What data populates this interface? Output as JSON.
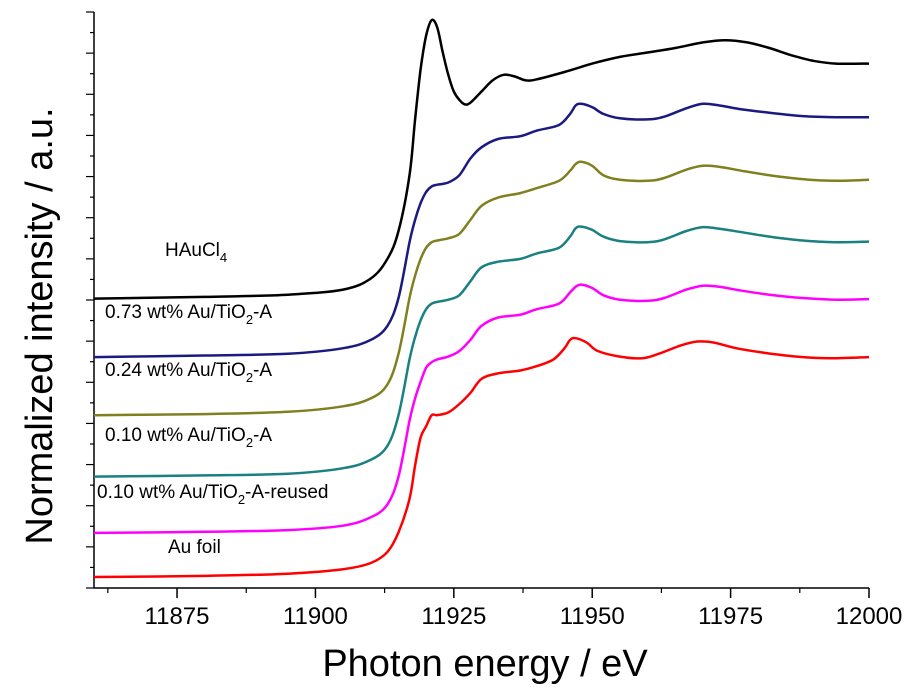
{
  "chart_data": {
    "type": "line",
    "title": "",
    "xlabel": "Photon energy / eV",
    "ylabel": "Normalized intensity / a.u.",
    "xlim": [
      11860,
      12000
    ],
    "ylim": [
      0,
      1
    ],
    "x_ticks": [
      11875,
      11900,
      11925,
      11950,
      11975,
      12000
    ],
    "x_tick_labels": [
      "11875",
      "11900",
      "11925",
      "11950",
      "11975",
      "12000"
    ],
    "y_tick_labels": "none",
    "grid": false,
    "legend": "inline labels",
    "series": [
      {
        "name": "HAuCl4",
        "label_main": "HAuCl",
        "label_sub": "4",
        "label_tail": "",
        "color": "#000000",
        "points": [
          [
            11860,
            0.499
          ],
          [
            11880,
            0.502
          ],
          [
            11895,
            0.506
          ],
          [
            11905,
            0.515
          ],
          [
            11910,
            0.535
          ],
          [
            11913,
            0.57
          ],
          [
            11915,
            0.62
          ],
          [
            11917,
            0.72
          ],
          [
            11918,
            0.82
          ],
          [
            11919,
            0.91
          ],
          [
            11920,
            0.97
          ],
          [
            11921,
            0.998
          ],
          [
            11922,
            0.985
          ],
          [
            11923,
            0.94
          ],
          [
            11924,
            0.9
          ],
          [
            11925,
            0.87
          ],
          [
            11926,
            0.855
          ],
          [
            11927,
            0.847
          ],
          [
            11928,
            0.85
          ],
          [
            11930,
            0.87
          ],
          [
            11932,
            0.89
          ],
          [
            11934,
            0.9
          ],
          [
            11936,
            0.897
          ],
          [
            11938,
            0.89
          ],
          [
            11940,
            0.892
          ],
          [
            11945,
            0.905
          ],
          [
            11950,
            0.92
          ],
          [
            11955,
            0.932
          ],
          [
            11960,
            0.94
          ],
          [
            11965,
            0.948
          ],
          [
            11970,
            0.958
          ],
          [
            11974,
            0.962
          ],
          [
            11978,
            0.958
          ],
          [
            11982,
            0.948
          ],
          [
            11986,
            0.935
          ],
          [
            11990,
            0.925
          ],
          [
            11994,
            0.92
          ],
          [
            12000,
            0.92
          ]
        ]
      },
      {
        "name": "0.73 wt% Au/TiO2-A",
        "label_main": "0.73 wt% Au/TiO",
        "label_sub": "2",
        "label_tail": "-A",
        "color": "#1a1a80",
        "points": [
          [
            11860,
            0.394
          ],
          [
            11880,
            0.397
          ],
          [
            11895,
            0.4
          ],
          [
            11905,
            0.41
          ],
          [
            11910,
            0.425
          ],
          [
            11913,
            0.45
          ],
          [
            11915,
            0.5
          ],
          [
            11917,
            0.6
          ],
          [
            11918,
            0.64
          ],
          [
            11919,
            0.67
          ],
          [
            11920,
            0.69
          ],
          [
            11921,
            0.7
          ],
          [
            11922,
            0.703
          ],
          [
            11924,
            0.707
          ],
          [
            11926,
            0.72
          ],
          [
            11928,
            0.75
          ],
          [
            11930,
            0.77
          ],
          [
            11933,
            0.785
          ],
          [
            11937,
            0.79
          ],
          [
            11940,
            0.8
          ],
          [
            11944,
            0.81
          ],
          [
            11946,
            0.83
          ],
          [
            11947,
            0.845
          ],
          [
            11948,
            0.848
          ],
          [
            11950,
            0.842
          ],
          [
            11952,
            0.83
          ],
          [
            11955,
            0.822
          ],
          [
            11960,
            0.82
          ],
          [
            11963,
            0.825
          ],
          [
            11967,
            0.84
          ],
          [
            11970,
            0.848
          ],
          [
            11973,
            0.845
          ],
          [
            11977,
            0.838
          ],
          [
            11982,
            0.832
          ],
          [
            11988,
            0.826
          ],
          [
            11994,
            0.824
          ],
          [
            12000,
            0.824
          ]
        ]
      },
      {
        "name": "0.24 wt% Au/TiO2-A",
        "label_main": "0.24 wt% Au/TiO",
        "label_sub": "2",
        "label_tail": "-A",
        "color": "#808020",
        "points": [
          [
            11860,
            0.29
          ],
          [
            11880,
            0.292
          ],
          [
            11895,
            0.296
          ],
          [
            11905,
            0.306
          ],
          [
            11910,
            0.32
          ],
          [
            11913,
            0.345
          ],
          [
            11915,
            0.4
          ],
          [
            11917,
            0.5
          ],
          [
            11918,
            0.54
          ],
          [
            11919,
            0.57
          ],
          [
            11920,
            0.59
          ],
          [
            11921,
            0.6
          ],
          [
            11922,
            0.603
          ],
          [
            11924,
            0.607
          ],
          [
            11926,
            0.615
          ],
          [
            11928,
            0.64
          ],
          [
            11930,
            0.665
          ],
          [
            11933,
            0.68
          ],
          [
            11937,
            0.688
          ],
          [
            11940,
            0.697
          ],
          [
            11944,
            0.71
          ],
          [
            11946,
            0.728
          ],
          [
            11947,
            0.74
          ],
          [
            11948,
            0.744
          ],
          [
            11950,
            0.737
          ],
          [
            11952,
            0.72
          ],
          [
            11955,
            0.712
          ],
          [
            11960,
            0.71
          ],
          [
            11963,
            0.715
          ],
          [
            11967,
            0.73
          ],
          [
            11970,
            0.737
          ],
          [
            11973,
            0.735
          ],
          [
            11977,
            0.728
          ],
          [
            11982,
            0.72
          ],
          [
            11988,
            0.713
          ],
          [
            11994,
            0.71
          ],
          [
            12000,
            0.712
          ]
        ]
      },
      {
        "name": "0.10 wt% Au/TiO2-A",
        "label_main": "0.10 wt% Au/TiO",
        "label_sub": "2",
        "label_tail": "-A",
        "color": "#1a8080",
        "points": [
          [
            11860,
            0.18
          ],
          [
            11880,
            0.182
          ],
          [
            11895,
            0.185
          ],
          [
            11905,
            0.195
          ],
          [
            11910,
            0.21
          ],
          [
            11913,
            0.235
          ],
          [
            11915,
            0.29
          ],
          [
            11917,
            0.39
          ],
          [
            11918,
            0.43
          ],
          [
            11919,
            0.46
          ],
          [
            11920,
            0.48
          ],
          [
            11921,
            0.49
          ],
          [
            11922,
            0.493
          ],
          [
            11924,
            0.497
          ],
          [
            11926,
            0.505
          ],
          [
            11928,
            0.53
          ],
          [
            11930,
            0.555
          ],
          [
            11933,
            0.565
          ],
          [
            11937,
            0.57
          ],
          [
            11940,
            0.58
          ],
          [
            11944,
            0.59
          ],
          [
            11946,
            0.61
          ],
          [
            11947,
            0.625
          ],
          [
            11948,
            0.628
          ],
          [
            11950,
            0.622
          ],
          [
            11952,
            0.61
          ],
          [
            11955,
            0.602
          ],
          [
            11960,
            0.6
          ],
          [
            11963,
            0.605
          ],
          [
            11967,
            0.62
          ],
          [
            11970,
            0.627
          ],
          [
            11973,
            0.624
          ],
          [
            11977,
            0.618
          ],
          [
            11982,
            0.61
          ],
          [
            11988,
            0.603
          ],
          [
            11994,
            0.6
          ],
          [
            12000,
            0.601
          ]
        ]
      },
      {
        "name": "0.10 wt% Au/TiO2-A-reused",
        "label_main": "0.10 wt% Au/TiO",
        "label_sub": "2",
        "label_tail": "-A-reused",
        "color": "#ff00ff",
        "points": [
          [
            11860,
            0.079
          ],
          [
            11880,
            0.081
          ],
          [
            11895,
            0.084
          ],
          [
            11905,
            0.092
          ],
          [
            11910,
            0.107
          ],
          [
            11913,
            0.13
          ],
          [
            11915,
            0.18
          ],
          [
            11917,
            0.28
          ],
          [
            11918,
            0.32
          ],
          [
            11919,
            0.35
          ],
          [
            11920,
            0.375
          ],
          [
            11921,
            0.385
          ],
          [
            11922,
            0.39
          ],
          [
            11924,
            0.395
          ],
          [
            11926,
            0.405
          ],
          [
            11928,
            0.425
          ],
          [
            11930,
            0.45
          ],
          [
            11933,
            0.465
          ],
          [
            11937,
            0.47
          ],
          [
            11940,
            0.48
          ],
          [
            11944,
            0.49
          ],
          [
            11946,
            0.51
          ],
          [
            11947,
            0.52
          ],
          [
            11948,
            0.524
          ],
          [
            11950,
            0.518
          ],
          [
            11952,
            0.505
          ],
          [
            11955,
            0.497
          ],
          [
            11960,
            0.495
          ],
          [
            11963,
            0.5
          ],
          [
            11967,
            0.515
          ],
          [
            11970,
            0.522
          ],
          [
            11973,
            0.52
          ],
          [
            11977,
            0.513
          ],
          [
            11982,
            0.506
          ],
          [
            11988,
            0.5
          ],
          [
            11994,
            0.497
          ],
          [
            12000,
            0.498
          ]
        ]
      },
      {
        "name": "Au foil",
        "label_main": "Au foil",
        "label_sub": "",
        "label_tail": "",
        "color": "#ff0000",
        "points": [
          [
            11860,
            0.0
          ],
          [
            11880,
            0.002
          ],
          [
            11895,
            0.006
          ],
          [
            11905,
            0.014
          ],
          [
            11910,
            0.025
          ],
          [
            11913,
            0.045
          ],
          [
            11915,
            0.08
          ],
          [
            11917,
            0.14
          ],
          [
            11918,
            0.2
          ],
          [
            11919,
            0.25
          ],
          [
            11920,
            0.27
          ],
          [
            11921,
            0.29
          ],
          [
            11922,
            0.29
          ],
          [
            11924,
            0.295
          ],
          [
            11926,
            0.31
          ],
          [
            11928,
            0.33
          ],
          [
            11930,
            0.355
          ],
          [
            11933,
            0.365
          ],
          [
            11937,
            0.37
          ],
          [
            11940,
            0.378
          ],
          [
            11943,
            0.39
          ],
          [
            11945,
            0.41
          ],
          [
            11946,
            0.425
          ],
          [
            11947,
            0.428
          ],
          [
            11949,
            0.42
          ],
          [
            11951,
            0.405
          ],
          [
            11955,
            0.395
          ],
          [
            11959,
            0.392
          ],
          [
            11962,
            0.4
          ],
          [
            11966,
            0.415
          ],
          [
            11969,
            0.422
          ],
          [
            11972,
            0.42
          ],
          [
            11976,
            0.41
          ],
          [
            11981,
            0.402
          ],
          [
            11987,
            0.395
          ],
          [
            11993,
            0.392
          ],
          [
            12000,
            0.394
          ]
        ]
      }
    ]
  }
}
